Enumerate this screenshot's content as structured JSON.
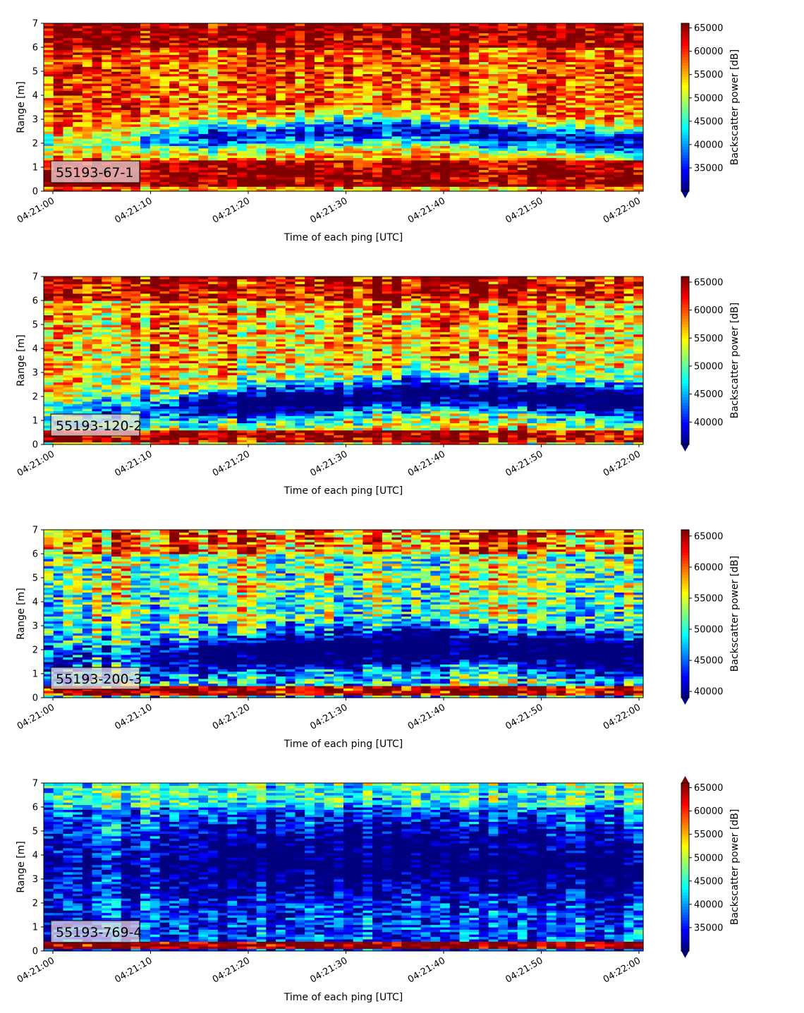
{
  "chart_data": [
    {
      "type": "heatmap",
      "label": "55193-67-1",
      "xlabel": "Time of each ping [UTC]",
      "ylabel": "Range [m]",
      "ylim": [
        0,
        7
      ],
      "yticks": [
        "0",
        "1",
        "2",
        "3",
        "4",
        "5",
        "6",
        "7"
      ],
      "xticks": [
        "04:21:00",
        "04:21:10",
        "04:21:20",
        "04:21:30",
        "04:21:40",
        "04:21:50",
        "04:22:00"
      ],
      "xlim": [
        0,
        60
      ],
      "colorbar": {
        "label": "Backscatter power [dB]",
        "vmin": 30000,
        "vmax": 66000,
        "ticks": [
          "35000",
          "40000",
          "45000",
          "50000",
          "55000",
          "60000",
          "65000"
        ],
        "extend": "min"
      },
      "features": {
        "low_band": {
          "center_start": 2.0,
          "center_mid": 2.6,
          "center_end": 2.0,
          "mid_time": 35,
          "width": 0.6,
          "strength": 1.0
        },
        "surface_band": [
          0.25,
          1.25
        ],
        "high_range_level": 60000
      }
    },
    {
      "type": "heatmap",
      "label": "55193-120-2",
      "xlabel": "Time of each ping [UTC]",
      "ylabel": "Range [m]",
      "ylim": [
        0,
        7
      ],
      "yticks": [
        "0",
        "1",
        "2",
        "3",
        "4",
        "5",
        "6",
        "7"
      ],
      "xticks": [
        "04:21:00",
        "04:21:10",
        "04:21:20",
        "04:21:30",
        "04:21:40",
        "04:21:50",
        "04:22:00"
      ],
      "xlim": [
        0,
        60
      ],
      "colorbar": {
        "label": "Backscatter power [dB]",
        "vmin": 36000,
        "vmax": 66000,
        "ticks": [
          "40000",
          "45000",
          "50000",
          "55000",
          "60000",
          "65000"
        ],
        "extend": "min"
      },
      "features": {
        "low_band": {
          "center_start": 1.2,
          "center_mid": 2.2,
          "center_end": 1.8,
          "mid_time": 40,
          "width": 0.7,
          "strength": 1.0
        },
        "surface_band": [
          0.1,
          0.55
        ],
        "high_range_level": 58000
      }
    },
    {
      "type": "heatmap",
      "label": "55193-200-3",
      "xlabel": "Time of each ping [UTC]",
      "ylabel": "Range [m]",
      "ylim": [
        0,
        7
      ],
      "yticks": [
        "0",
        "1",
        "2",
        "3",
        "4",
        "5",
        "6",
        "7"
      ],
      "xticks": [
        "04:21:00",
        "04:21:10",
        "04:21:20",
        "04:21:30",
        "04:21:40",
        "04:21:50",
        "04:22:00"
      ],
      "xlim": [
        0,
        60
      ],
      "colorbar": {
        "label": "Backscatter power [dB]",
        "vmin": 39000,
        "vmax": 66000,
        "ticks": [
          "40000",
          "45000",
          "50000",
          "55000",
          "60000",
          "65000"
        ],
        "extend": "min"
      },
      "features": {
        "low_band": {
          "center_start": 1.5,
          "center_mid": 2.2,
          "center_end": 1.8,
          "mid_time": 40,
          "width": 0.8,
          "strength": 0.8
        },
        "surface_band": [
          0.1,
          0.45
        ],
        "high_range_level": 54000
      }
    },
    {
      "type": "heatmap",
      "label": "55193-769-4",
      "xlabel": "Time of each ping [UTC]",
      "ylabel": "Range [m]",
      "ylim": [
        0,
        7
      ],
      "yticks": [
        "0",
        "1",
        "2",
        "3",
        "4",
        "5",
        "6",
        "7"
      ],
      "xticks": [
        "04:21:00",
        "04:21:10",
        "04:21:20",
        "04:21:30",
        "04:21:40",
        "04:21:50",
        "04:22:00"
      ],
      "xlim": [
        0,
        60
      ],
      "colorbar": {
        "label": "Backscatter power [dB]",
        "vmin": 30000,
        "vmax": 66000,
        "ticks": [
          "35000",
          "40000",
          "45000",
          "50000",
          "55000",
          "60000",
          "65000"
        ],
        "extend": "both"
      },
      "features": {
        "low_band": {
          "center_start": 3.5,
          "center_mid": 4.0,
          "center_end": 3.5,
          "mid_time": 35,
          "width": 1.6,
          "strength": 0.5
        },
        "surface_band": [
          0.15,
          0.4
        ],
        "high_range_level": 40000
      }
    }
  ]
}
